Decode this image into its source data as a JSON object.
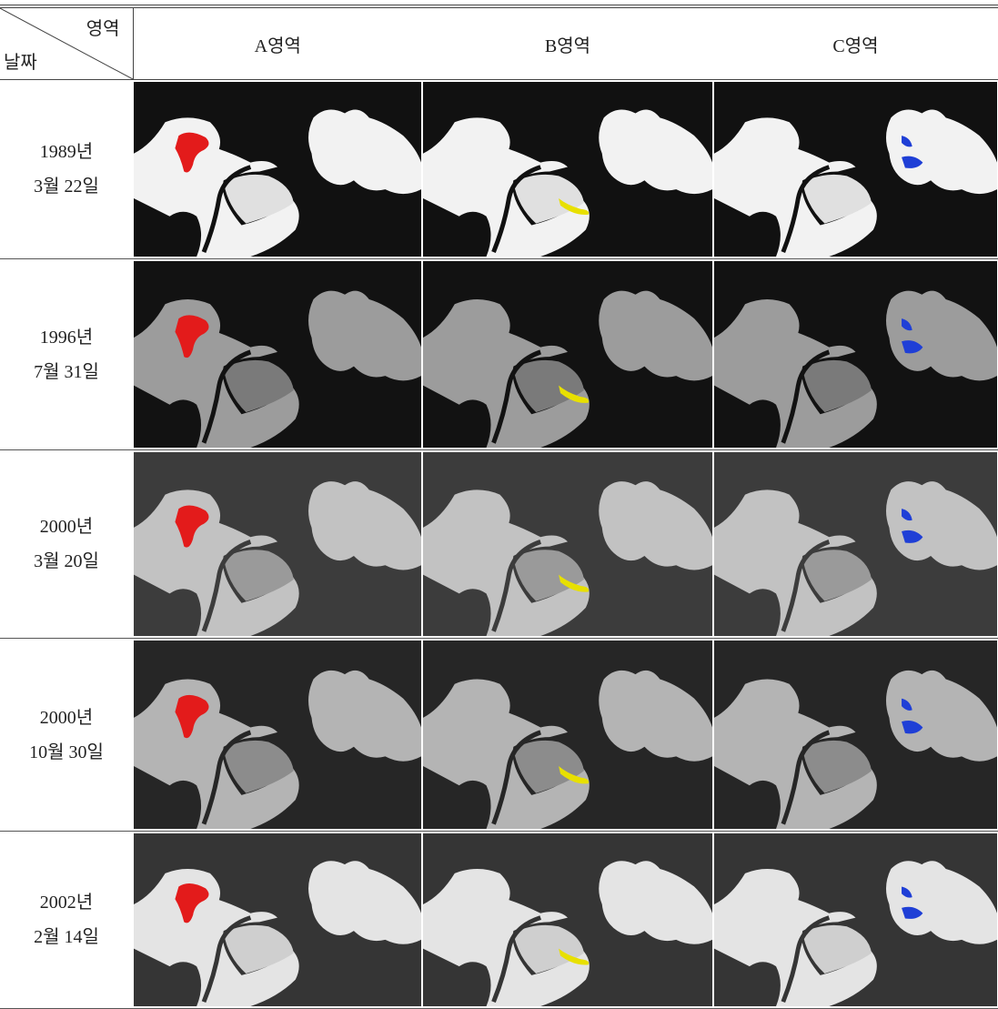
{
  "table": {
    "corner": {
      "top": "영역",
      "bottom": "날짜"
    },
    "columns": [
      "A영역",
      "B영역",
      "C영역"
    ],
    "rows": [
      {
        "date": [
          "1989년",
          "3월 22일"
        ]
      },
      {
        "date": [
          "1996년",
          "7월 31일"
        ]
      },
      {
        "date": [
          "2000년",
          "3월 20일"
        ]
      },
      {
        "date": [
          "2000년",
          "10월 30일"
        ]
      },
      {
        "date": [
          "2002년",
          "2월 14일"
        ]
      }
    ]
  }
}
